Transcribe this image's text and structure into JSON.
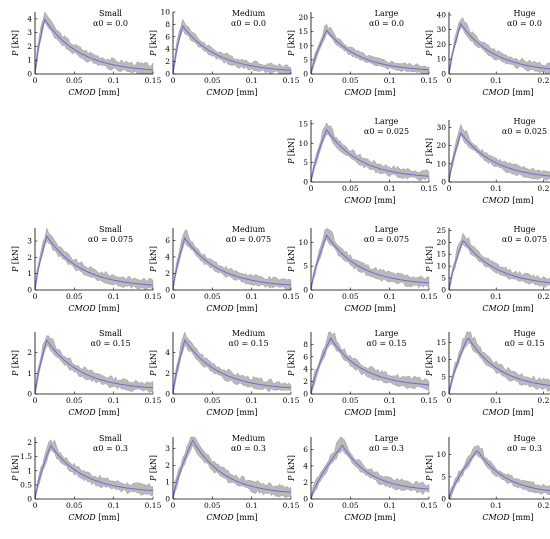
{
  "xlabel": "CMOD",
  "xunit": "[mm]",
  "ylabel": "P",
  "yunit": "[kN]",
  "colors": {
    "band": "#b9b9b9",
    "band_edge": "#8f8f8f",
    "line": "#6b6bd6",
    "axis": "#000000"
  },
  "chart_data": [
    {
      "type": "area",
      "title": "Small",
      "alpha": "α0 = 0.0",
      "peak_cmod": 0.012,
      "peak_load": 4.0,
      "tail_load": 0.3,
      "xmax": 0.15,
      "xlim": [
        0,
        0.15
      ],
      "ylim": [
        0,
        4.5
      ],
      "xticks": [
        "0",
        "0.05",
        "0.1",
        "0.15"
      ],
      "xtickvals": [
        0,
        0.05,
        0.1,
        0.15
      ],
      "yticks": [
        "0",
        "1",
        "2",
        "3",
        "4"
      ],
      "ytickvals": [
        0,
        1,
        2,
        3,
        4
      ]
    },
    {
      "type": "area",
      "title": "Medium",
      "alpha": "α0 = 0.0",
      "peak_cmod": 0.012,
      "peak_load": 7.8,
      "tail_load": 0.6,
      "xmax": 0.15,
      "xlim": [
        0,
        0.15
      ],
      "ylim": [
        0,
        10
      ],
      "xticks": [
        "0",
        "0.05",
        "0.1",
        "0.15"
      ],
      "xtickvals": [
        0,
        0.05,
        0.1,
        0.15
      ],
      "yticks": [
        "0",
        "2",
        "4",
        "6",
        "8",
        "10"
      ],
      "ytickvals": [
        0,
        2,
        4,
        6,
        8,
        10
      ]
    },
    {
      "type": "area",
      "title": "Large",
      "alpha": "α0 = 0.0",
      "peak_cmod": 0.02,
      "peak_load": 15.5,
      "tail_load": 1.5,
      "xmax": 0.15,
      "xlim": [
        0,
        0.15
      ],
      "ylim": [
        0,
        22
      ],
      "xticks": [
        "0",
        "0.05",
        "0.1",
        "0.15"
      ],
      "xtickvals": [
        0,
        0.05,
        0.1,
        0.15
      ],
      "yticks": [
        "0",
        "5",
        "10",
        "15",
        "20"
      ],
      "ytickvals": [
        0,
        5,
        10,
        15,
        20
      ]
    },
    {
      "type": "area",
      "title": "Huge",
      "alpha": "α0 = 0.0",
      "peak_cmod": 0.025,
      "peak_load": 34,
      "tail_load": 2.5,
      "xmax": 0.25,
      "xlim": [
        0,
        0.25
      ],
      "ylim": [
        0,
        42
      ],
      "xticks": [
        "0",
        "0.1",
        "0.2"
      ],
      "xtickvals": [
        0,
        0.1,
        0.2
      ],
      "yticks": [
        "0",
        "10",
        "20",
        "30",
        "40"
      ],
      "ytickvals": [
        0,
        10,
        20,
        30,
        40
      ]
    },
    {
      "type": "area",
      "title": "Large",
      "alpha": "α0 = 0.025",
      "peak_cmod": 0.02,
      "peak_load": 13.5,
      "tail_load": 1.5,
      "xmax": 0.15,
      "xlim": [
        0,
        0.15
      ],
      "ylim": [
        0,
        16
      ],
      "xticks": [
        "0",
        "0.05",
        "0.1",
        "0.15"
      ],
      "xtickvals": [
        0,
        0.05,
        0.1,
        0.15
      ],
      "yticks": [
        "0",
        "5",
        "10",
        "15"
      ],
      "ytickvals": [
        0,
        5,
        10,
        15
      ]
    },
    {
      "type": "area",
      "title": "Huge",
      "alpha": "α0 = 0.025",
      "peak_cmod": 0.025,
      "peak_load": 27,
      "tail_load": 2.5,
      "xmax": 0.25,
      "xlim": [
        0,
        0.25
      ],
      "ylim": [
        0,
        34
      ],
      "xticks": [
        "0",
        "0.1",
        "0.2"
      ],
      "xtickvals": [
        0,
        0.1,
        0.2
      ],
      "yticks": [
        "0",
        "10",
        "20",
        "30"
      ],
      "ytickvals": [
        0,
        10,
        20,
        30
      ]
    },
    {
      "type": "area",
      "title": "Small",
      "alpha": "α0 = 0.075",
      "peak_cmod": 0.015,
      "peak_load": 3.3,
      "tail_load": 0.3,
      "xmax": 0.15,
      "xlim": [
        0,
        0.15
      ],
      "ylim": [
        0,
        3.8
      ],
      "xticks": [
        "0",
        "0.05",
        "0.1",
        "0.15"
      ],
      "xtickvals": [
        0,
        0.05,
        0.1,
        0.15
      ],
      "yticks": [
        "0",
        "1",
        "2",
        "3"
      ],
      "ytickvals": [
        0,
        1,
        2,
        3
      ]
    },
    {
      "type": "area",
      "title": "Medium",
      "alpha": "α0 = 0.075",
      "peak_cmod": 0.015,
      "peak_load": 6.3,
      "tail_load": 0.6,
      "xmax": 0.15,
      "xlim": [
        0,
        0.15
      ],
      "ylim": [
        0,
        7.5
      ],
      "xticks": [
        "0",
        "0.05",
        "0.1",
        "0.15"
      ],
      "xtickvals": [
        0,
        0.05,
        0.1,
        0.15
      ],
      "yticks": [
        "0",
        "2",
        "4",
        "6"
      ],
      "ytickvals": [
        0,
        2,
        4,
        6
      ]
    },
    {
      "type": "area",
      "title": "Large",
      "alpha": "α0 = 0.075",
      "peak_cmod": 0.02,
      "peak_load": 11.5,
      "tail_load": 1.5,
      "xmax": 0.15,
      "xlim": [
        0,
        0.15
      ],
      "ylim": [
        0,
        13
      ],
      "xticks": [
        "0",
        "0.05",
        "0.1",
        "0.15"
      ],
      "xtickvals": [
        0,
        0.05,
        0.1,
        0.15
      ],
      "yticks": [
        "0",
        "5",
        "10"
      ],
      "ytickvals": [
        0,
        5,
        10
      ]
    },
    {
      "type": "area",
      "title": "Huge",
      "alpha": "α0 = 0.075",
      "peak_cmod": 0.03,
      "peak_load": 21,
      "tail_load": 2.5,
      "xmax": 0.25,
      "xlim": [
        0,
        0.25
      ],
      "ylim": [
        0,
        26
      ],
      "xticks": [
        "0",
        "0.1",
        "0.2"
      ],
      "xtickvals": [
        0,
        0.1,
        0.2
      ],
      "yticks": [
        "0",
        "5",
        "10",
        "15",
        "20",
        "25"
      ],
      "ytickvals": [
        0,
        5,
        10,
        15,
        20,
        25
      ]
    },
    {
      "type": "area",
      "title": "Small",
      "alpha": "α0 = 0.15",
      "peak_cmod": 0.015,
      "peak_load": 2.6,
      "tail_load": 0.3,
      "xmax": 0.15,
      "xlim": [
        0,
        0.15
      ],
      "ylim": [
        0,
        3
      ],
      "xticks": [
        "0",
        "0.05",
        "0.1",
        "0.15"
      ],
      "xtickvals": [
        0,
        0.05,
        0.1,
        0.15
      ],
      "yticks": [
        "0",
        "1",
        "2"
      ],
      "ytickvals": [
        0,
        1,
        2
      ]
    },
    {
      "type": "area",
      "title": "Medium",
      "alpha": "α0 = 0.15",
      "peak_cmod": 0.015,
      "peak_load": 5.2,
      "tail_load": 0.6,
      "xmax": 0.15,
      "xlim": [
        0,
        0.15
      ],
      "ylim": [
        0,
        6
      ],
      "xticks": [
        "0",
        "0.05",
        "0.1",
        "0.15"
      ],
      "xtickvals": [
        0,
        0.05,
        0.1,
        0.15
      ],
      "yticks": [
        "0",
        "2",
        "4"
      ],
      "ytickvals": [
        0,
        2,
        4
      ]
    },
    {
      "type": "area",
      "title": "Large",
      "alpha": "α0 = 0.15",
      "peak_cmod": 0.025,
      "peak_load": 9,
      "tail_load": 1.5,
      "xmax": 0.15,
      "xlim": [
        0,
        0.15
      ],
      "ylim": [
        0,
        10
      ],
      "xticks": [
        "0",
        "0.05",
        "0.1",
        "0.15"
      ],
      "xtickvals": [
        0,
        0.05,
        0.1,
        0.15
      ],
      "yticks": [
        "0",
        "2",
        "4",
        "6",
        "8"
      ],
      "ytickvals": [
        0,
        2,
        4,
        6,
        8
      ]
    },
    {
      "type": "area",
      "title": "Huge",
      "alpha": "α0 = 0.15",
      "peak_cmod": 0.04,
      "peak_load": 16.5,
      "tail_load": 2,
      "xmax": 0.25,
      "xlim": [
        0,
        0.25
      ],
      "ylim": [
        0,
        18
      ],
      "xticks": [
        "0",
        "0.1",
        "0.2"
      ],
      "xtickvals": [
        0,
        0.1,
        0.2
      ],
      "yticks": [
        "0",
        "5",
        "10",
        "15"
      ],
      "ytickvals": [
        0,
        5,
        10,
        15
      ]
    },
    {
      "type": "area",
      "title": "Small",
      "alpha": "α0 = 0.3",
      "peak_cmod": 0.02,
      "peak_load": 1.9,
      "tail_load": 0.3,
      "xmax": 0.15,
      "xlim": [
        0,
        0.15
      ],
      "ylim": [
        0,
        2.2
      ],
      "xticks": [
        "0",
        "0.05",
        "0.1",
        "0.15"
      ],
      "xtickvals": [
        0,
        0.05,
        0.1,
        0.15
      ],
      "yticks": [
        "0",
        "0.5",
        "1",
        "1.5",
        "2"
      ],
      "ytickvals": [
        0,
        0.5,
        1,
        1.5,
        2
      ]
    },
    {
      "type": "area",
      "title": "Medium",
      "alpha": "α0 = 0.3",
      "peak_cmod": 0.025,
      "peak_load": 3.5,
      "tail_load": 0.4,
      "xmax": 0.15,
      "xlim": [
        0,
        0.15
      ],
      "ylim": [
        0,
        3.7
      ],
      "xticks": [
        "0",
        "0.05",
        "0.1",
        "0.15"
      ],
      "xtickvals": [
        0,
        0.05,
        0.1,
        0.15
      ],
      "yticks": [
        "0",
        "1",
        "2",
        "3"
      ],
      "ytickvals": [
        0,
        1,
        2,
        3
      ]
    },
    {
      "type": "area",
      "title": "Large",
      "alpha": "α0 = 0.3",
      "peak_cmod": 0.04,
      "peak_load": 6.5,
      "tail_load": 1.2,
      "xmax": 0.15,
      "xlim": [
        0,
        0.15
      ],
      "ylim": [
        0,
        7.5
      ],
      "xticks": [
        "0",
        "0.05",
        "0.1",
        "0.15"
      ],
      "xtickvals": [
        0,
        0.05,
        0.1,
        0.15
      ],
      "yticks": [
        "0",
        "2",
        "4",
        "6"
      ],
      "ytickvals": [
        0,
        2,
        4,
        6
      ]
    },
    {
      "type": "area",
      "title": "Huge",
      "alpha": "α0 = 0.3",
      "peak_cmod": 0.06,
      "peak_load": 11,
      "tail_load": 1.5,
      "xmax": 0.25,
      "xlim": [
        0,
        0.25
      ],
      "ylim": [
        0,
        14
      ],
      "xticks": [
        "0",
        "0.1",
        "0.2"
      ],
      "xtickvals": [
        0,
        0.1,
        0.2
      ],
      "yticks": [
        "0",
        "5",
        "10"
      ],
      "ytickvals": [
        0,
        5,
        10
      ]
    }
  ]
}
